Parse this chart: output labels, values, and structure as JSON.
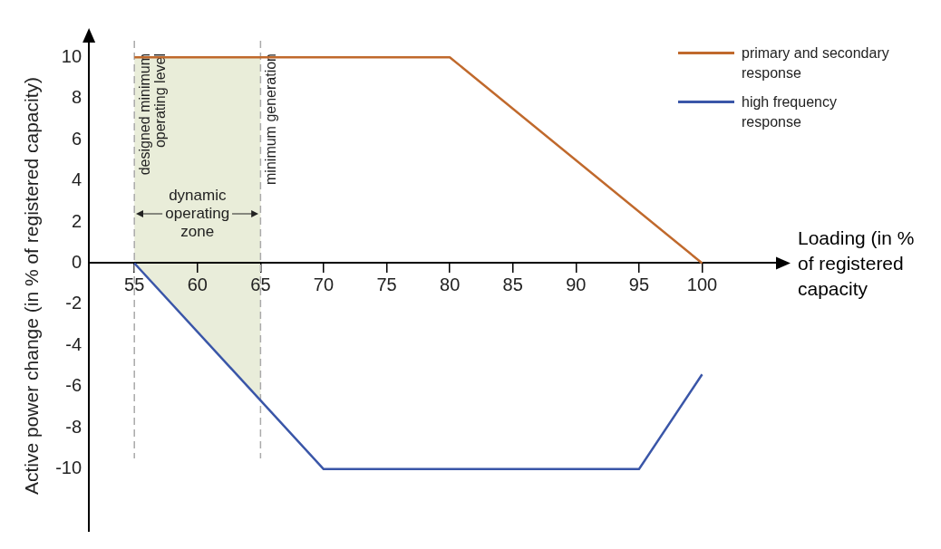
{
  "chart_data": {
    "type": "line",
    "xlabel": "Loading (in % of registered capacity",
    "ylabel": "Active power change (in % of registered capacity)",
    "xlim": [
      51.4,
      106
    ],
    "xticks": [
      55,
      60,
      65,
      70,
      75,
      80,
      85,
      90,
      95,
      100
    ],
    "ylim": [
      -13,
      10.8
    ],
    "yticks": [
      -10,
      -8,
      -6,
      -4,
      -2,
      0,
      2,
      4,
      6,
      8,
      10
    ],
    "series": [
      {
        "type": "area",
        "color": "#e9edd9",
        "x": [
          55,
          65
        ],
        "values": [
          10,
          10
        ]
      },
      {
        "type": "area",
        "color": "#e9edda",
        "x": [
          55,
          65
        ],
        "values": [
          0,
          -6.7
        ]
      },
      {
        "name": "primary and secondary response",
        "color": "#c0692c",
        "x": [
          55,
          80,
          100
        ],
        "values": [
          10,
          10,
          0
        ]
      },
      {
        "name": "high frequency response",
        "color": "#3a56a8",
        "x": [
          55,
          70,
          95,
          100
        ],
        "values": [
          0,
          -10,
          -10,
          -5.4
        ]
      }
    ],
    "ref_lines": [
      {
        "axis": "x",
        "value": 55,
        "label": "designed minimum operating level",
        "color": "#aaaaaa",
        "line_style": "dashed"
      },
      {
        "axis": "x",
        "value": 65,
        "label": "minimum generation",
        "color": "#aaaaaa",
        "line_style": "dashed"
      }
    ],
    "annotations": [
      "dynamic operating zone"
    ],
    "grid": false,
    "legend": "top right",
    "marker": "none",
    "line_style": "solid"
  }
}
